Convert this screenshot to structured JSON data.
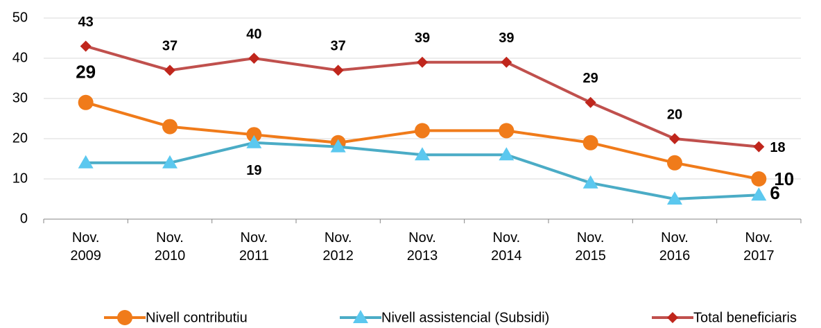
{
  "chart_data": {
    "type": "line",
    "categories": [
      "Nov. 2009",
      "Nov. 2010",
      "Nov. 2011",
      "Nov. 2012",
      "Nov. 2013",
      "Nov. 2014",
      "Nov. 2015",
      "Nov. 2016",
      "Nov. 2017"
    ],
    "series": [
      {
        "name": "Nivell contributiu",
        "color": "#f07b1a",
        "marker": "circle",
        "labels": [
          0,
          8
        ],
        "values": [
          29,
          23,
          21,
          19,
          22,
          22,
          19,
          14,
          10
        ]
      },
      {
        "name": "Nivell assistencial (Subsidi)",
        "color": "#4bacc6",
        "marker_color": "#5bc8ef",
        "marker": "triangle",
        "labels": [
          2,
          8
        ],
        "values": [
          14,
          14,
          19,
          18,
          16,
          16,
          9,
          5,
          6
        ]
      },
      {
        "name": "Total beneficiaris",
        "color": "#c0504d",
        "marker_color": "#c0261c",
        "marker": "diamond",
        "labels": [
          0,
          1,
          2,
          3,
          4,
          5,
          6,
          7,
          8
        ],
        "values": [
          43,
          37,
          40,
          37,
          39,
          39,
          29,
          20,
          18
        ]
      }
    ],
    "ylim": [
      0,
      50
    ],
    "yticks": [
      0,
      10,
      20,
      30,
      40,
      50
    ],
    "grid": true,
    "legend": "bottom"
  }
}
